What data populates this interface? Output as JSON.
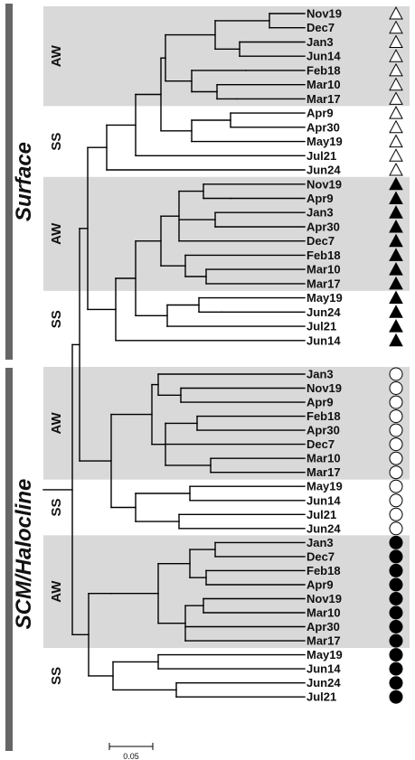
{
  "sections": [
    {
      "id": "surface",
      "label": "Surface"
    },
    {
      "id": "scm",
      "label": "SCM/Halocline"
    }
  ],
  "groups": [
    {
      "label": "AW",
      "shaded": true
    },
    {
      "label": "SS",
      "shaded": false
    },
    {
      "label": "AW",
      "shaded": true
    },
    {
      "label": "SS",
      "shaded": false
    },
    {
      "label": "AW",
      "shaded": true
    },
    {
      "label": "SS",
      "shaded": false
    },
    {
      "label": "AW",
      "shaded": true
    },
    {
      "label": "SS",
      "shaded": false
    }
  ],
  "leaves": [
    {
      "label": "Nov19",
      "marker": "open-triangle"
    },
    {
      "label": "Dec7",
      "marker": "open-triangle"
    },
    {
      "label": "Jan3",
      "marker": "open-triangle"
    },
    {
      "label": "Jun14",
      "marker": "open-triangle"
    },
    {
      "label": "Feb18",
      "marker": "open-triangle"
    },
    {
      "label": "Mar10",
      "marker": "open-triangle"
    },
    {
      "label": "Mar17",
      "marker": "open-triangle"
    },
    {
      "label": "Apr9",
      "marker": "open-triangle"
    },
    {
      "label": "Apr30",
      "marker": "open-triangle"
    },
    {
      "label": "May19",
      "marker": "open-triangle"
    },
    {
      "label": "Jul21",
      "marker": "open-triangle"
    },
    {
      "label": "Jun24",
      "marker": "open-triangle"
    },
    {
      "label": "Nov19",
      "marker": "filled-triangle"
    },
    {
      "label": "Apr9",
      "marker": "filled-triangle"
    },
    {
      "label": "Jan3",
      "marker": "filled-triangle"
    },
    {
      "label": "Apr30",
      "marker": "filled-triangle"
    },
    {
      "label": "Dec7",
      "marker": "filled-triangle"
    },
    {
      "label": "Feb18",
      "marker": "filled-triangle"
    },
    {
      "label": "Mar10",
      "marker": "filled-triangle"
    },
    {
      "label": "Mar17",
      "marker": "filled-triangle"
    },
    {
      "label": "May19",
      "marker": "filled-triangle"
    },
    {
      "label": "Jun24",
      "marker": "filled-triangle"
    },
    {
      "label": "Jul21",
      "marker": "filled-triangle"
    },
    {
      "label": "Jun14",
      "marker": "filled-triangle"
    },
    {
      "label": "Jan3",
      "marker": "open-circle"
    },
    {
      "label": "Nov19",
      "marker": "open-circle"
    },
    {
      "label": "Apr9",
      "marker": "open-circle"
    },
    {
      "label": "Feb18",
      "marker": "open-circle"
    },
    {
      "label": "Apr30",
      "marker": "open-circle"
    },
    {
      "label": "Dec7",
      "marker": "open-circle"
    },
    {
      "label": "Mar10",
      "marker": "open-circle"
    },
    {
      "label": "Mar17",
      "marker": "open-circle"
    },
    {
      "label": "May19",
      "marker": "open-circle"
    },
    {
      "label": "Jun14",
      "marker": "open-circle"
    },
    {
      "label": "Jul21",
      "marker": "open-circle"
    },
    {
      "label": "Jun24",
      "marker": "open-circle"
    },
    {
      "label": "Jan3",
      "marker": "filled-circle"
    },
    {
      "label": "Dec7",
      "marker": "filled-circle"
    },
    {
      "label": "Feb18",
      "marker": "filled-circle"
    },
    {
      "label": "Apr9",
      "marker": "filled-circle"
    },
    {
      "label": "Nov19",
      "marker": "filled-circle"
    },
    {
      "label": "Mar10",
      "marker": "filled-circle"
    },
    {
      "label": "Apr30",
      "marker": "filled-circle"
    },
    {
      "label": "Mar17",
      "marker": "filled-circle"
    },
    {
      "label": "May19",
      "marker": "filled-circle"
    },
    {
      "label": "Jun14",
      "marker": "filled-circle"
    },
    {
      "label": "Jun24",
      "marker": "filled-circle"
    },
    {
      "label": "Jul21",
      "marker": "filled-circle"
    }
  ],
  "scale_bar": {
    "label": "0.05"
  },
  "colors": {
    "shade": "#d9d9d9",
    "section_bar": "#666666",
    "line": "#000000"
  }
}
